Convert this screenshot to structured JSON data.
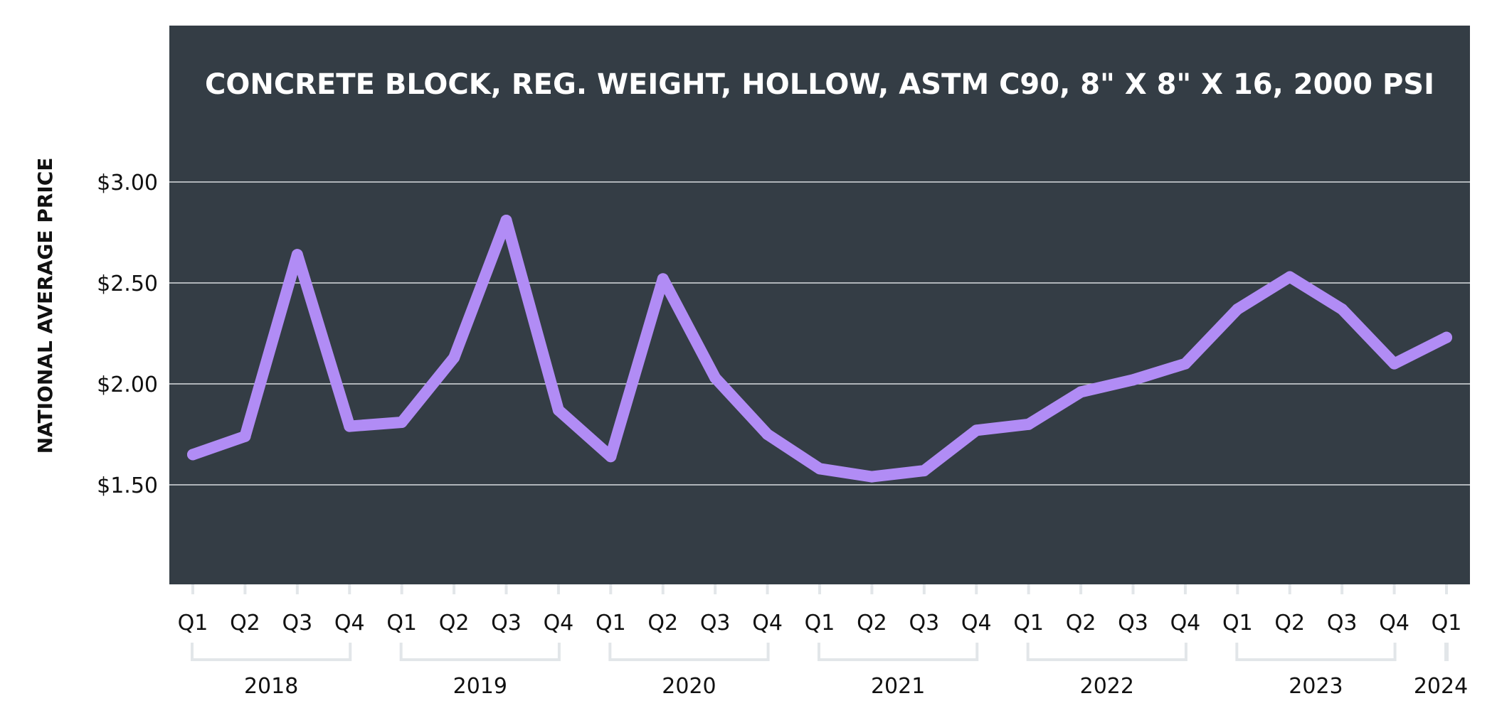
{
  "chart_data": {
    "type": "line",
    "title": "CONCRETE BLOCK, REG. WEIGHT, HOLLOW, ASTM C90, 8\" X 8\" X 16, 2000 PSI",
    "ylabel": "NATIONAL AVERAGE PRICE",
    "xlabel": "",
    "ylim": [
      1.0,
      3.5
    ],
    "yticks": [
      {
        "value": 3.0,
        "label": "$3.00"
      },
      {
        "value": 2.5,
        "label": "$2.50"
      },
      {
        "value": 2.0,
        "label": "$2.00"
      },
      {
        "value": 1.5,
        "label": "$1.50"
      }
    ],
    "grid": true,
    "legend": "none",
    "colors": {
      "background": "#343d45",
      "line": "#b18cf5",
      "grid": "#d9dde0",
      "bracket": "#e2e6e9",
      "text": "#111111",
      "title": "#ffffff"
    },
    "categories": [
      "Q1",
      "Q2",
      "Q3",
      "Q4",
      "Q1",
      "Q2",
      "Q3",
      "Q4",
      "Q1",
      "Q2",
      "Q3",
      "Q4",
      "Q1",
      "Q2",
      "Q3",
      "Q4",
      "Q1",
      "Q2",
      "Q3",
      "Q4",
      "Q1",
      "Q2",
      "Q3",
      "Q4",
      "Q1"
    ],
    "years": [
      {
        "label": "2018",
        "start": 0,
        "end": 3
      },
      {
        "label": "2019",
        "start": 4,
        "end": 7
      },
      {
        "label": "2020",
        "start": 8,
        "end": 11
      },
      {
        "label": "2021",
        "start": 12,
        "end": 15
      },
      {
        "label": "2022",
        "start": 16,
        "end": 19
      },
      {
        "label": "2023",
        "start": 20,
        "end": 23
      },
      {
        "label": "2024",
        "start": 24,
        "end": 24
      }
    ],
    "series": [
      {
        "values": [
          1.65,
          1.74,
          2.64,
          1.79,
          1.81,
          2.13,
          2.81,
          1.87,
          1.64,
          2.52,
          2.03,
          1.75,
          1.58,
          1.54,
          1.57,
          1.77,
          1.8,
          1.96,
          2.02,
          2.1,
          2.37,
          2.53,
          2.37,
          2.1,
          2.23
        ]
      }
    ]
  }
}
